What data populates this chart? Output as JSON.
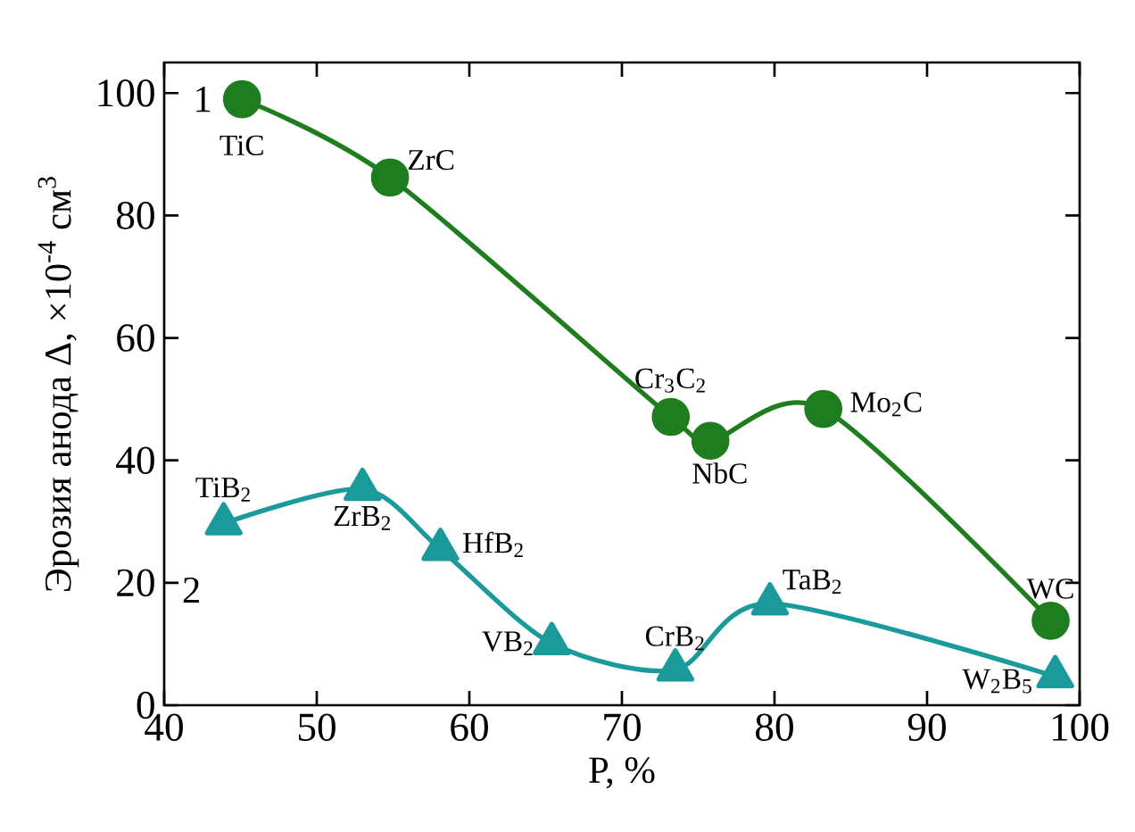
{
  "chart_data": {
    "type": "line",
    "xlabel": "P, %",
    "ylabel": "Эрозия анода Δ, ×10$^{-4}$ см$^{3}$",
    "xlim": [
      40,
      100
    ],
    "xticks": [
      40,
      50,
      60,
      70,
      80,
      90,
      100
    ],
    "ylim": [
      0,
      105
    ],
    "yticks": [
      0,
      20,
      40,
      60,
      80,
      100
    ],
    "series": [
      {
        "name": "1",
        "color": "#1e7d1e",
        "marker": "circle",
        "x": [
          45.1,
          54.8,
          73.2,
          75.8,
          83.2,
          98.1
        ],
        "values": [
          99.0,
          86.2,
          47.1,
          43.2,
          48.4,
          13.8
        ]
      },
      {
        "name": "2",
        "color": "#1a9a9a",
        "marker": "triangle",
        "x": [
          43.9,
          53.0,
          58.1,
          65.4,
          73.5,
          79.7,
          98.4
        ],
        "values": [
          29.7,
          35.3,
          25.5,
          10.1,
          5.8,
          16.6,
          4.7
        ]
      }
    ],
    "annotations": [
      {
        "text": "TiC",
        "x": 45.1,
        "y": 99.0
      },
      {
        "text": "ZrC",
        "x": 54.8,
        "y": 86.2
      },
      {
        "text": "Cr$_{3}$C$_{2}$",
        "x": 73.2,
        "y": 47.1
      },
      {
        "text": "NbC",
        "x": 75.8,
        "y": 43.2
      },
      {
        "text": "Mo$_{2}$C",
        "x": 83.2,
        "y": 48.4
      },
      {
        "text": "WC",
        "x": 98.1,
        "y": 13.8
      },
      {
        "text": "TiB$_{2}$",
        "x": 43.9,
        "y": 29.7
      },
      {
        "text": "ZrB$_{2}$",
        "x": 53.0,
        "y": 35.3
      },
      {
        "text": "HfB$_{2}$",
        "x": 58.1,
        "y": 25.5
      },
      {
        "text": "VB$_{2}$",
        "x": 65.4,
        "y": 10.1
      },
      {
        "text": "CrB$_{2}$",
        "x": 73.5,
        "y": 5.8
      },
      {
        "text": "TaB$_{2}$",
        "x": 79.7,
        "y": 16.6
      },
      {
        "text": "W$_{2}$B$_{5}$",
        "x": 98.4,
        "y": 4.7
      }
    ]
  }
}
